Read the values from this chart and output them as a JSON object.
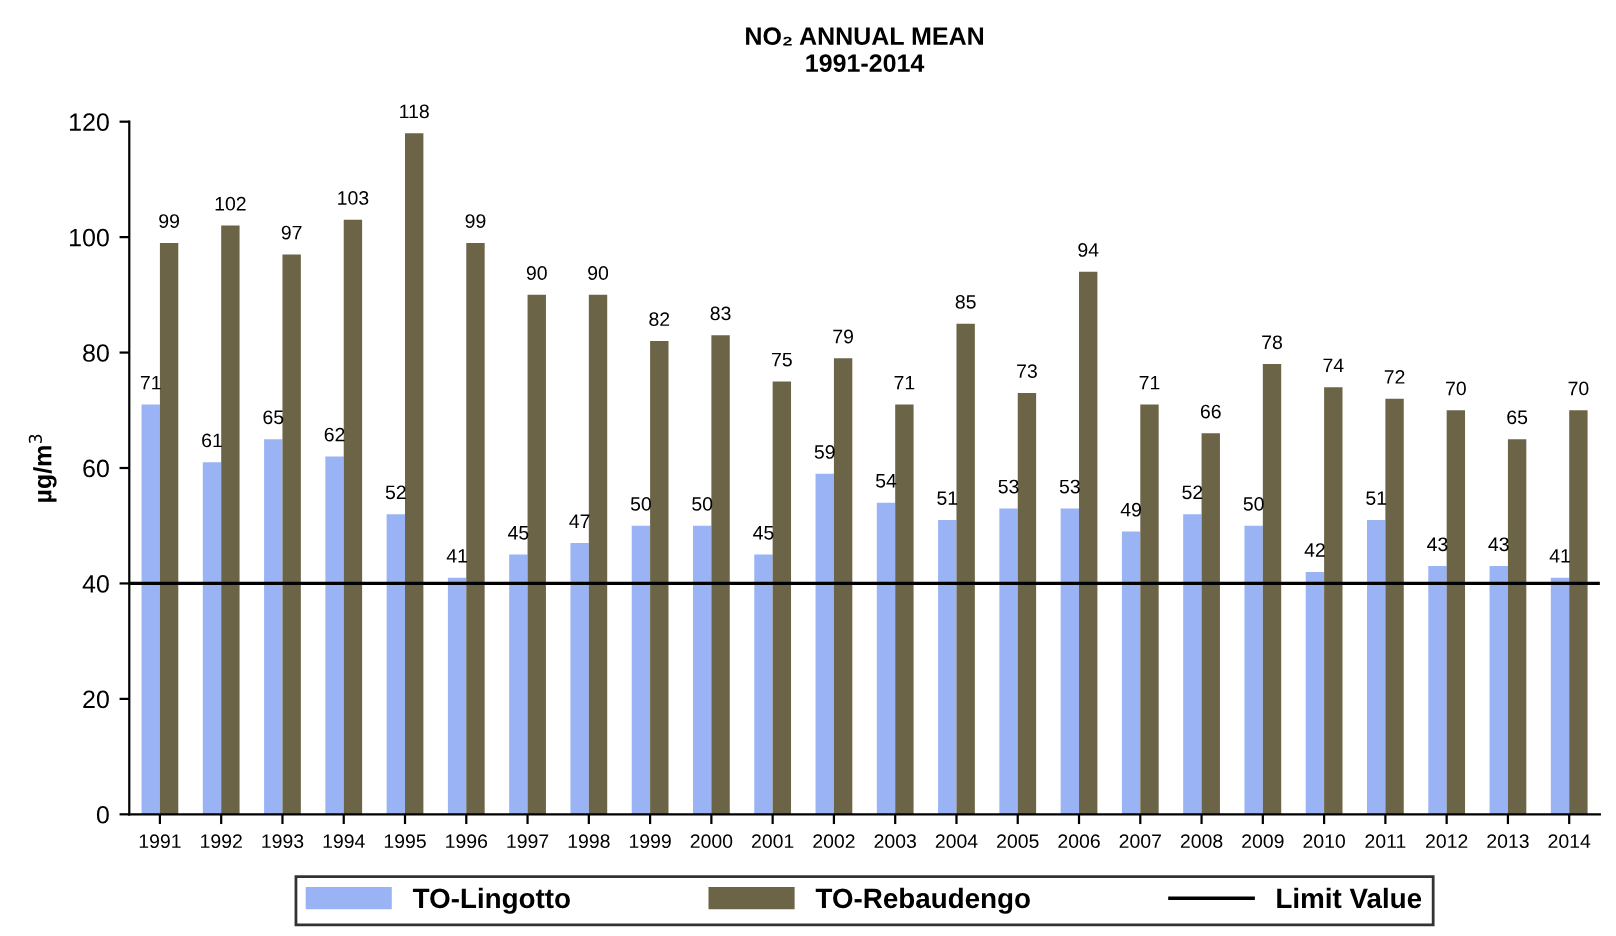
{
  "chart_data": {
    "type": "bar",
    "title": "NO₂ ANNUAL MEAN\n1991-2014",
    "ylabel": "µg/m$^{3}$",
    "categories": [
      "1991",
      "1992",
      "1993",
      "1994",
      "1995",
      "1996",
      "1997",
      "1998",
      "1999",
      "2000",
      "2001",
      "2002",
      "2003",
      "2004",
      "2005",
      "2006",
      "2007",
      "2008",
      "2009",
      "2010",
      "2011",
      "2012",
      "2013",
      "2014"
    ],
    "series": [
      {
        "name": "TO-Lingotto",
        "color": "#99b3f5",
        "values": [
          71,
          61,
          65,
          62,
          52,
          41,
          45,
          47,
          50,
          50,
          45,
          59,
          54,
          51,
          53,
          53,
          49,
          52,
          50,
          42,
          51,
          43,
          43,
          41
        ]
      },
      {
        "name": "TO-Rebaudengo",
        "color": "#6b6446",
        "values": [
          99,
          102,
          97,
          103,
          118,
          99,
          90,
          90,
          82,
          83,
          75,
          79,
          71,
          85,
          73,
          94,
          71,
          66,
          78,
          74,
          72,
          70,
          65,
          70
        ]
      }
    ],
    "ref_lines": [
      {
        "axis": "y",
        "value": 40,
        "label": "Limit Value",
        "color": "#000000"
      }
    ],
    "ylim": [
      0,
      120
    ],
    "yticks": [
      0,
      20,
      40,
      60,
      80,
      100,
      120
    ],
    "data_labels": true,
    "grid": false,
    "legend": "bottom"
  }
}
